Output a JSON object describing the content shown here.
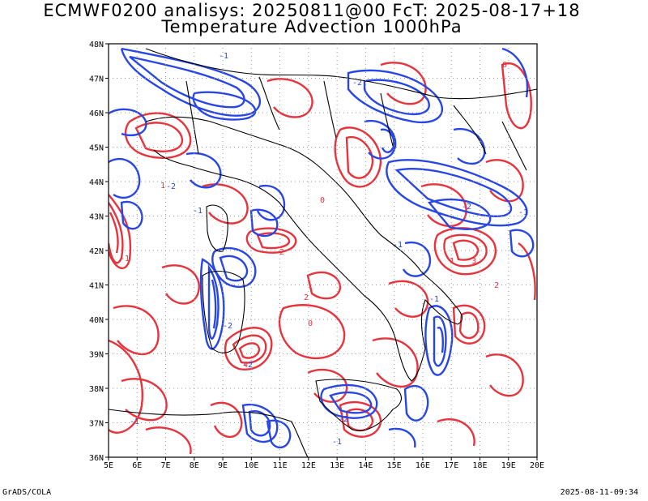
{
  "header": {
    "title_line1": "ECMWF0200 analisys: 20250811@00 FcT: 2025-08-17+18",
    "title_line2": "Temperature Advection 1000hPa"
  },
  "footer": {
    "left": "GrADS/COLA",
    "right": "2025-08-11-09:34"
  },
  "map": {
    "lon_range": [
      5,
      20
    ],
    "lat_range": [
      36,
      48
    ],
    "lon_labels": [
      "5E",
      "6E",
      "7E",
      "8E",
      "9E",
      "10E",
      "11E",
      "12E",
      "13E",
      "14E",
      "15E",
      "16E",
      "17E",
      "18E",
      "19E",
      "20E"
    ],
    "lat_labels": [
      "36N",
      "37N",
      "38N",
      "39N",
      "40N",
      "41N",
      "42N",
      "43N",
      "44N",
      "45N",
      "46N",
      "47N",
      "48N"
    ],
    "grid": true,
    "colors": {
      "positive": "#e8323c",
      "negative": "#2846e6",
      "border": "#000000",
      "grid": "#999999"
    },
    "contour_labels": [
      "-1",
      "-2",
      "1",
      "0",
      "2",
      "3",
      "4"
    ]
  }
}
